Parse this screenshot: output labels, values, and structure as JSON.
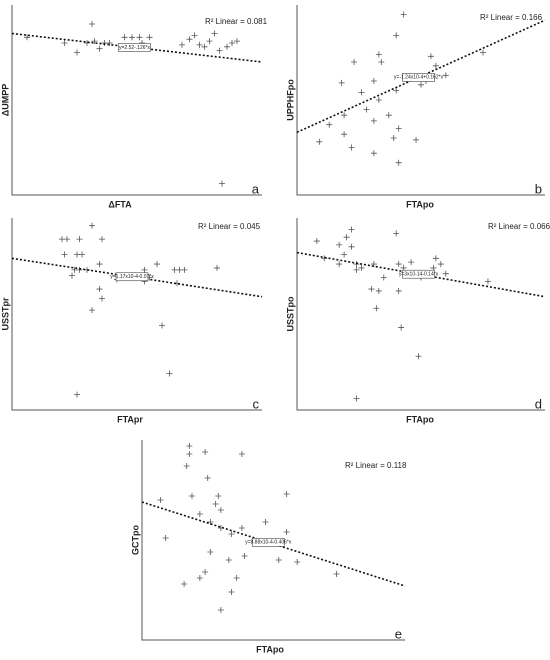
{
  "chart_data": [
    {
      "type": "scatter",
      "x_label": "ΔFTA",
      "y_label": "ΔUMPP",
      "panel_label": "a",
      "r2_text": "R² Linear = 0.081",
      "equation": "y=2.52-.126*x",
      "xlim": [
        0,
        100
      ],
      "ylim": [
        0,
        100
      ],
      "x": [
        32,
        6,
        21,
        26,
        30,
        33,
        35,
        37,
        39,
        45,
        48,
        51,
        52,
        55,
        68,
        71,
        73,
        75,
        77,
        79,
        81,
        83,
        86,
        88,
        90,
        84
      ],
      "y": [
        90,
        83,
        80,
        75,
        80,
        81,
        77,
        80,
        80,
        83,
        83,
        83,
        80,
        83,
        79,
        82,
        84,
        79,
        78,
        81,
        85,
        76,
        78,
        80,
        81,
        6
      ],
      "fit": {
        "x": [
          0,
          100
        ],
        "y": [
          85,
          70
        ]
      }
    },
    {
      "type": "scatter",
      "x_label": "FTApo",
      "y_label": "UPPHFpo",
      "panel_label": "b",
      "r2_text": "R² Linear = 0.166",
      "equation": "y=-1.24x10-4+0.162*x",
      "xlim": [
        0,
        100
      ],
      "ylim": [
        0,
        100
      ],
      "x": [
        43,
        40,
        33,
        23,
        34,
        18,
        31,
        26,
        40,
        54,
        56,
        60,
        52,
        50,
        33,
        28,
        19,
        31,
        37,
        13,
        41,
        19,
        9,
        39,
        48,
        22,
        31,
        41,
        75
      ],
      "y": [
        95,
        84,
        74,
        70,
        70,
        59,
        60,
        54,
        55,
        73,
        68,
        63,
        60,
        58,
        50,
        45,
        42,
        39,
        42,
        37,
        35,
        32,
        28,
        30,
        29,
        25,
        22,
        17,
        75
      ],
      "fit": {
        "x": [
          0,
          100
        ],
        "y": [
          33,
          92
        ]
      }
    },
    {
      "type": "scatter",
      "x_label": "FTApr",
      "y_label": "USSTpr",
      "panel_label": "c",
      "r2_text": "R² Linear = 0.045",
      "equation": "y=1.17x10-4-0.07*x",
      "xlim": [
        0,
        100
      ],
      "ylim": [
        0,
        100
      ],
      "x": [
        20,
        22,
        27,
        32,
        36,
        21,
        26,
        28,
        25,
        27,
        30,
        35,
        24,
        42,
        53,
        55,
        58,
        65,
        67,
        69,
        82,
        35,
        36,
        32,
        60,
        63,
        26,
        53,
        66
      ],
      "y": [
        89,
        89,
        89,
        96,
        89,
        81,
        81,
        81,
        73,
        73,
        73,
        76,
        70,
        68,
        73,
        69,
        76,
        73,
        73,
        73,
        74,
        63,
        58,
        52,
        44,
        19,
        8,
        67,
        66
      ],
      "fit": {
        "x": [
          0,
          100
        ],
        "y": [
          79,
          59
        ]
      }
    },
    {
      "type": "scatter",
      "x_label": "FTApo",
      "y_label": "USSTpo",
      "panel_label": "d",
      "r2_text": "R² Linear = 0.066",
      "equation": "y=3x10-14-0.14*x",
      "xlim": [
        0,
        100
      ],
      "ylim": [
        0,
        100
      ],
      "x": [
        8,
        11,
        17,
        22,
        20,
        22,
        19,
        17,
        24,
        24,
        26,
        31,
        40,
        41,
        43,
        46,
        48,
        50,
        55,
        56,
        58,
        60,
        35,
        30,
        33,
        41,
        32,
        42,
        49,
        24,
        77
      ],
      "y": [
        88,
        79,
        86,
        94,
        90,
        85,
        81,
        76,
        76,
        73,
        74,
        76,
        92,
        76,
        74,
        77,
        71,
        69,
        74,
        79,
        76,
        71,
        69,
        63,
        62,
        62,
        53,
        43,
        28,
        6,
        67
      ],
      "fit": {
        "x": [
          0,
          100
        ],
        "y": [
          82,
          59
        ]
      }
    },
    {
      "type": "scatter",
      "x_label": "FTApo",
      "y_label": "GCTpo",
      "panel_label": "e",
      "r2_text": "R² Linear = 0.118",
      "equation": "y=8.88x10-4-0.406*x",
      "xlim": [
        0,
        100
      ],
      "ylim": [
        0,
        100
      ],
      "x": [
        18,
        38,
        18,
        24,
        17,
        25,
        7,
        19,
        29,
        55,
        28,
        30,
        22,
        26,
        30,
        47,
        38,
        34,
        9,
        55,
        39,
        52,
        59,
        26,
        33,
        24,
        22,
        36,
        16,
        34,
        30,
        74
      ],
      "y": [
        97,
        93,
        93,
        94,
        87,
        81,
        70,
        72,
        72,
        73,
        68,
        65,
        63,
        59,
        56,
        59,
        56,
        53,
        51,
        54,
        42,
        40,
        39,
        44,
        40,
        34,
        31,
        31,
        28,
        24,
        15,
        33
      ],
      "fit": {
        "x": [
          0,
          100
        ],
        "y": [
          69,
          27
        ]
      }
    }
  ]
}
